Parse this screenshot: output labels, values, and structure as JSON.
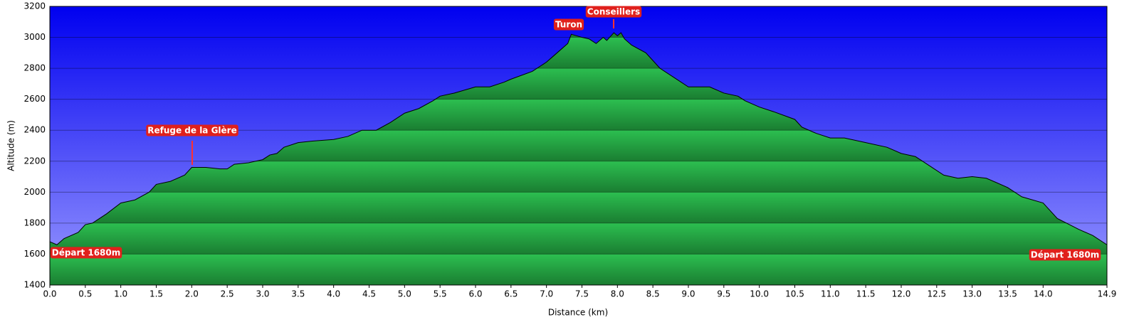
{
  "chart_data": {
    "type": "area",
    "x_label": "Distance   (km)",
    "y_label": "Altitude (m)",
    "x": [
      0,
      0.1,
      0.2,
      0.4,
      0.5,
      0.6,
      0.8,
      1.0,
      1.2,
      1.4,
      1.5,
      1.7,
      1.9,
      2.0,
      2.2,
      2.4,
      2.5,
      2.6,
      2.8,
      3.0,
      3.1,
      3.2,
      3.3,
      3.5,
      3.7,
      4.0,
      4.2,
      4.4,
      4.6,
      4.8,
      5.0,
      5.2,
      5.4,
      5.5,
      5.7,
      6.0,
      6.2,
      6.4,
      6.5,
      6.8,
      7.0,
      7.1,
      7.3,
      7.35,
      7.5,
      7.6,
      7.7,
      7.8,
      7.85,
      7.95,
      8.0,
      8.05,
      8.1,
      8.2,
      8.4,
      8.6,
      8.8,
      9.0,
      9.2,
      9.3,
      9.5,
      9.7,
      9.8,
      10.0,
      10.2,
      10.5,
      10.6,
      10.8,
      11.0,
      11.2,
      11.5,
      11.8,
      12.0,
      12.2,
      12.4,
      12.6,
      12.8,
      13.0,
      13.2,
      13.5,
      13.7,
      14.0,
      14.2,
      14.5,
      14.7,
      14.9
    ],
    "values": [
      1680,
      1660,
      1700,
      1740,
      1790,
      1800,
      1860,
      1930,
      1950,
      2000,
      2050,
      2070,
      2110,
      2160,
      2160,
      2150,
      2150,
      2180,
      2190,
      2210,
      2240,
      2250,
      2290,
      2320,
      2330,
      2340,
      2360,
      2400,
      2400,
      2450,
      2510,
      2540,
      2590,
      2620,
      2640,
      2680,
      2680,
      2710,
      2730,
      2780,
      2840,
      2880,
      2960,
      3020,
      3000,
      2990,
      2960,
      3000,
      2980,
      3030,
      3010,
      3030,
      2990,
      2950,
      2900,
      2800,
      2740,
      2680,
      2680,
      2680,
      2640,
      2620,
      2590,
      2550,
      2520,
      2470,
      2420,
      2380,
      2350,
      2350,
      2320,
      2290,
      2250,
      2230,
      2170,
      2110,
      2090,
      2100,
      2090,
      2030,
      1970,
      1930,
      1830,
      1760,
      1720,
      1660
    ],
    "color": "#22b14c",
    "line_color": "#000000",
    "xlim": [
      0,
      14.9
    ],
    "ylim": [
      1400,
      3200
    ],
    "xticks": [
      {
        "value": 0,
        "label": "0.0"
      },
      0.5,
      {
        "value": 1,
        "label": "1.0"
      },
      1.5,
      {
        "value": 2,
        "label": "2.0"
      },
      2.5,
      {
        "value": 3,
        "label": "3.0"
      },
      3.5,
      {
        "value": 4,
        "label": "4.0"
      },
      4.5,
      {
        "value": 5,
        "label": "5.0"
      },
      5.5,
      {
        "value": 6,
        "label": "6.0"
      },
      6.5,
      {
        "value": 7,
        "label": "7.0"
      },
      7.5,
      {
        "value": 8,
        "label": "8.0"
      },
      8.5,
      {
        "value": 9,
        "label": "9.0"
      },
      9.5,
      {
        "value": 10,
        "label": "10.0"
      },
      10.5,
      {
        "value": 11,
        "label": "11.0"
      },
      11.5,
      {
        "value": 12,
        "label": "12.0"
      },
      12.5,
      {
        "value": 13,
        "label": "13.0"
      },
      13.5,
      {
        "value": 14,
        "label": "14.0"
      },
      14.9
    ],
    "yticks": [
      1400,
      1600,
      1800,
      2000,
      2200,
      2400,
      2600,
      2800,
      3000,
      3200
    ],
    "grid": true,
    "annotations": [
      "Refuge de la Glère",
      "Turon",
      "Conseillers",
      "Départ 1680m",
      "Départ 1680m"
    ]
  }
}
